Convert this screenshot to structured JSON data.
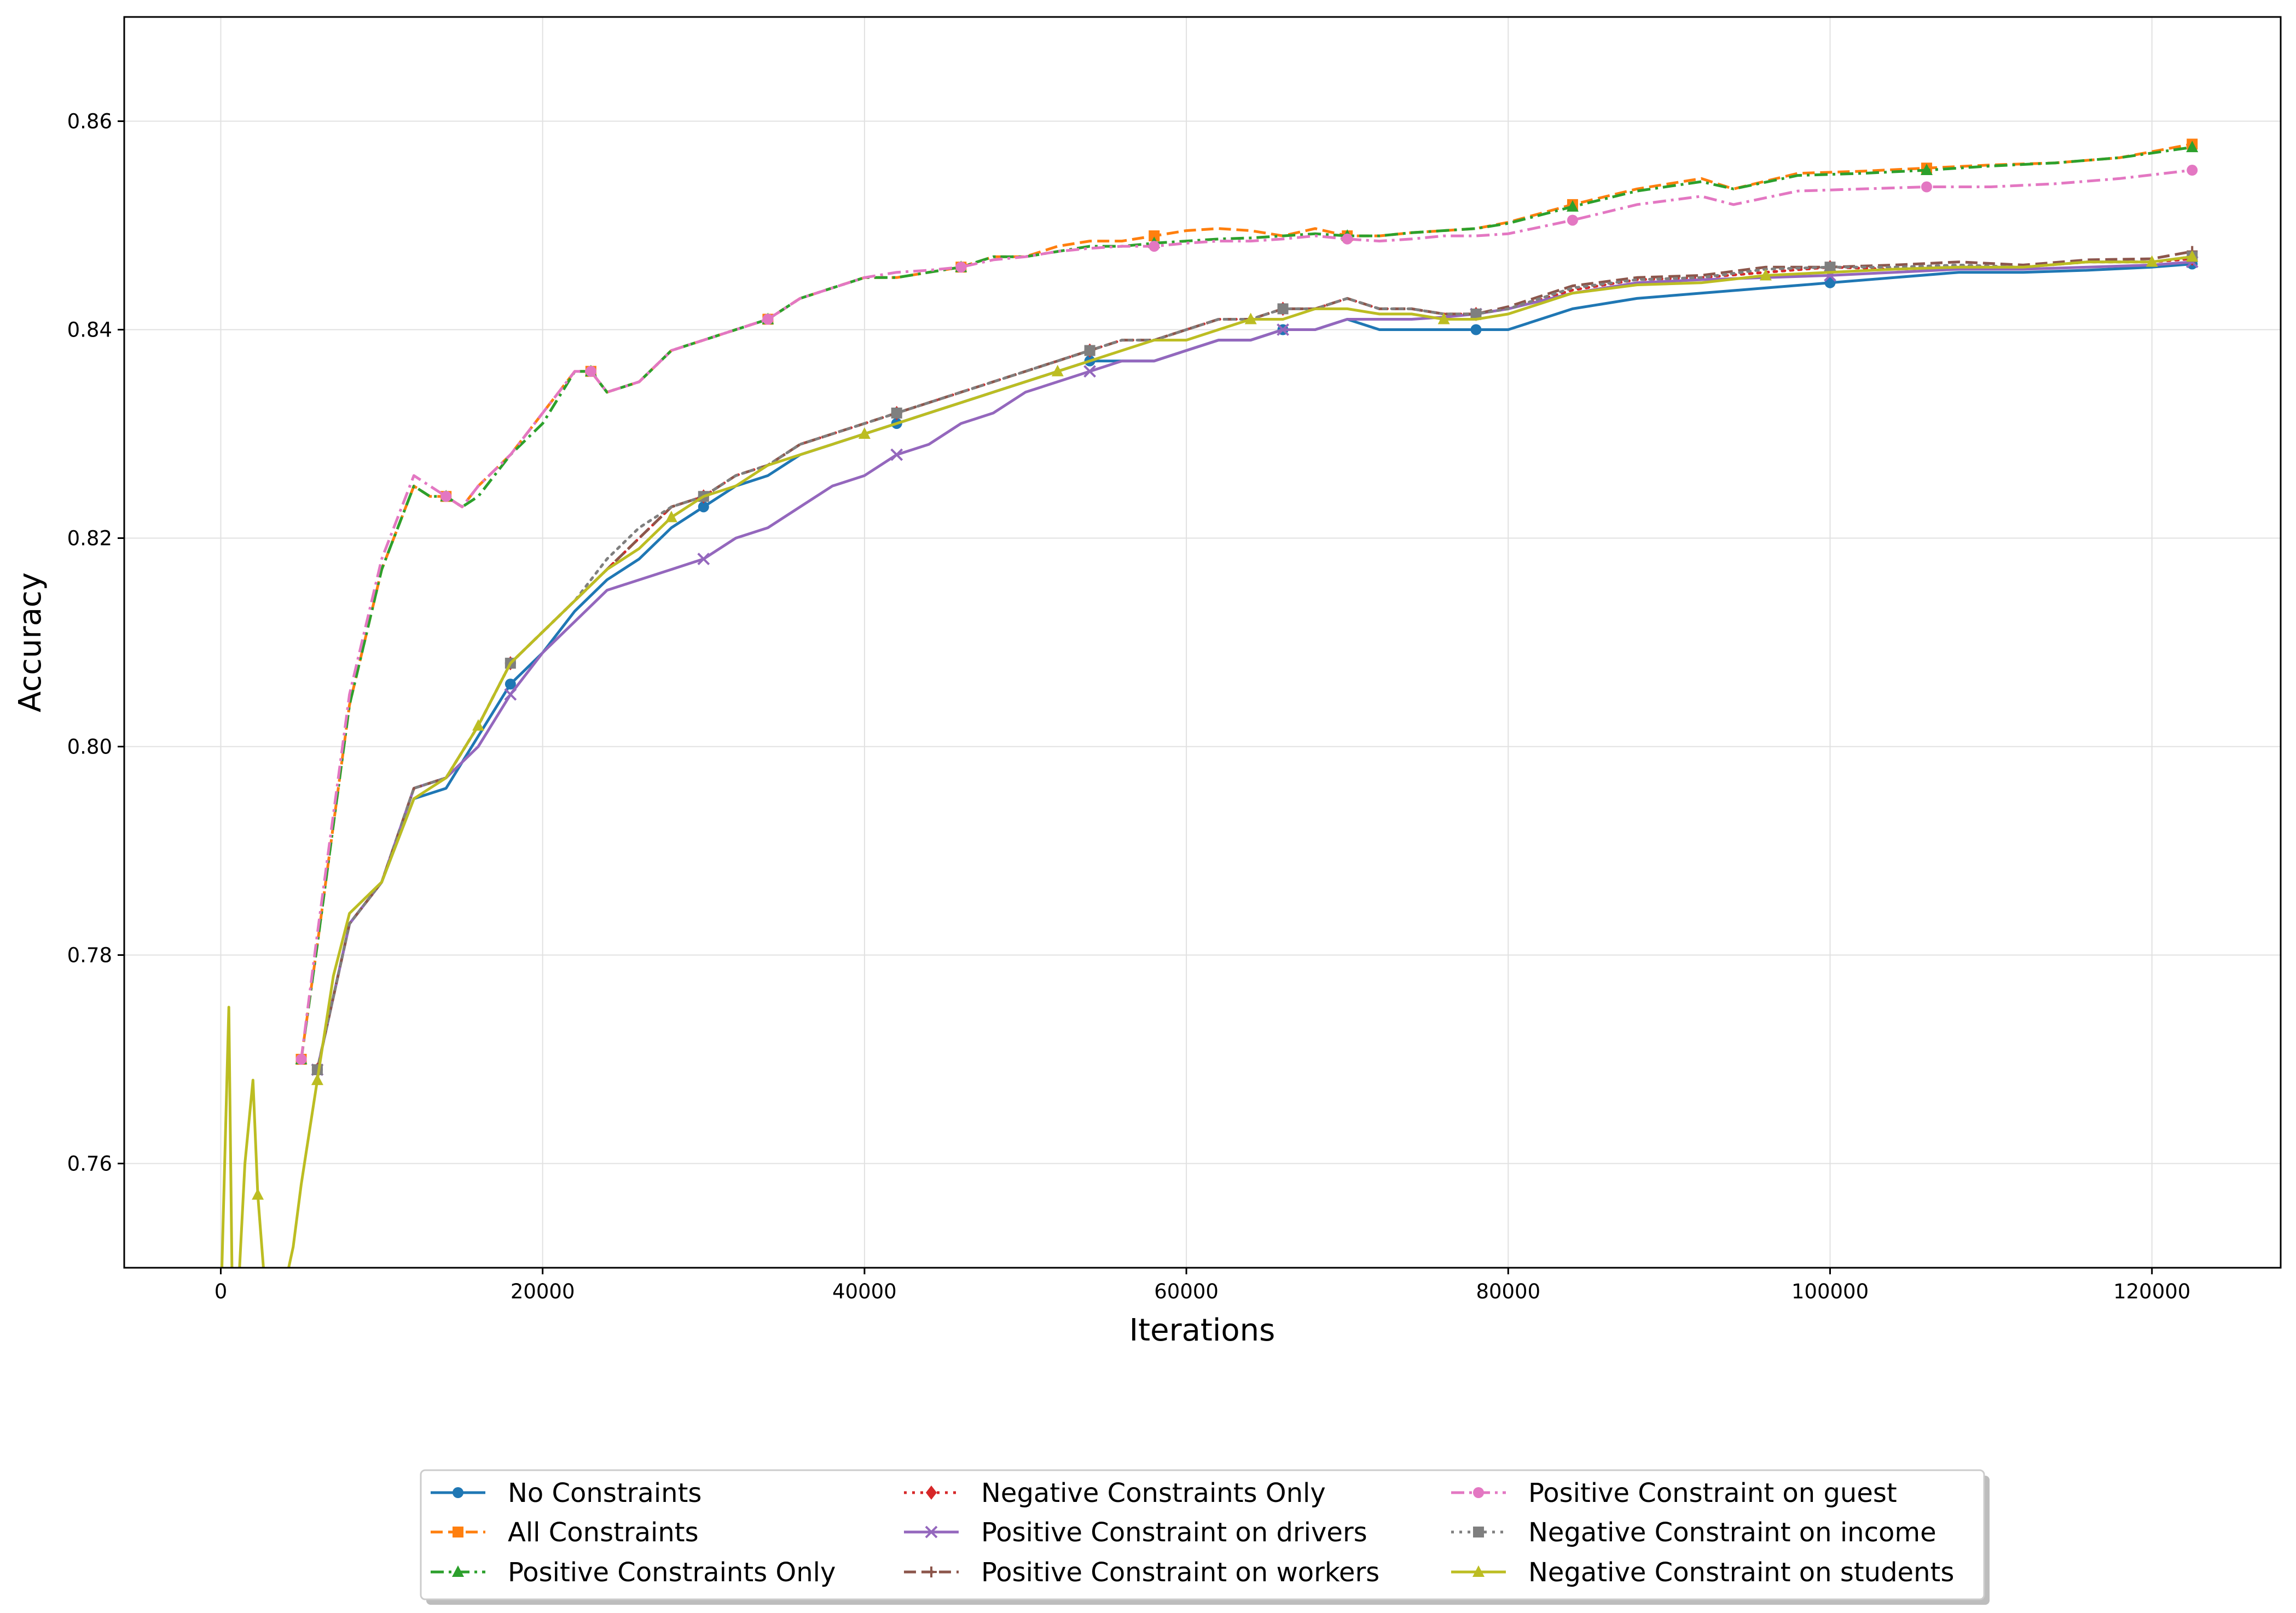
{
  "chart_data": {
    "type": "line",
    "title": "",
    "xlabel": "Iterations",
    "ylabel": "Accuracy",
    "xlim": [
      -6000,
      128000
    ],
    "ylim": [
      0.75,
      0.87
    ],
    "xticks": [
      0,
      20000,
      40000,
      60000,
      80000,
      100000,
      120000
    ],
    "xtick_labels": [
      "0",
      "20000",
      "40000",
      "60000",
      "80000",
      "100000",
      "120000"
    ],
    "yticks": [
      0.76,
      0.78,
      0.8,
      0.82,
      0.84,
      0.86
    ],
    "ytick_labels": [
      "0.76",
      "0.78",
      "0.80",
      "0.82",
      "0.84",
      "0.86"
    ],
    "grid": true,
    "legend_position": "bottom-center",
    "legend_columns": 3,
    "series": [
      {
        "name": "No Constraints",
        "color": "#1f77b4",
        "dash": "solid",
        "marker": "circle",
        "x": [
          6000,
          8000,
          10000,
          12000,
          14000,
          16000,
          18000,
          20000,
          22000,
          24000,
          26000,
          28000,
          30000,
          32000,
          34000,
          36000,
          38000,
          40000,
          42000,
          44000,
          46000,
          48000,
          50000,
          52000,
          54000,
          56000,
          58000,
          60000,
          62000,
          64000,
          66000,
          68000,
          70000,
          72000,
          74000,
          76000,
          78000,
          80000,
          84000,
          88000,
          92000,
          96000,
          100000,
          104000,
          108000,
          112000,
          116000,
          120000,
          122500
        ],
        "y": [
          0.769,
          0.783,
          0.787,
          0.795,
          0.796,
          0.801,
          0.806,
          0.809,
          0.813,
          0.816,
          0.818,
          0.821,
          0.823,
          0.825,
          0.826,
          0.828,
          0.829,
          0.83,
          0.831,
          0.832,
          0.833,
          0.834,
          0.835,
          0.836,
          0.837,
          0.837,
          0.837,
          0.838,
          0.839,
          0.839,
          0.84,
          0.84,
          0.841,
          0.84,
          0.84,
          0.84,
          0.84,
          0.84,
          0.842,
          0.843,
          0.8435,
          0.844,
          0.8445,
          0.845,
          0.8455,
          0.8455,
          0.8457,
          0.846,
          0.8463
        ]
      },
      {
        "name": "All Constraints",
        "color": "#ff7f0e",
        "dash": "dashed",
        "marker": "square",
        "x": [
          5000,
          6000,
          8000,
          10000,
          12000,
          13000,
          14000,
          15000,
          16000,
          18000,
          20000,
          22000,
          23000,
          24000,
          26000,
          28000,
          30000,
          32000,
          34000,
          36000,
          38000,
          40000,
          42000,
          44000,
          46000,
          48000,
          50000,
          52000,
          54000,
          56000,
          58000,
          60000,
          62000,
          64000,
          66000,
          68000,
          70000,
          72000,
          74000,
          76000,
          78000,
          80000,
          84000,
          88000,
          92000,
          94000,
          98000,
          102000,
          106000,
          110000,
          114000,
          118000,
          122500
        ],
        "y": [
          0.77,
          0.781,
          0.804,
          0.817,
          0.825,
          0.824,
          0.824,
          0.823,
          0.825,
          0.828,
          0.832,
          0.836,
          0.836,
          0.834,
          0.835,
          0.838,
          0.839,
          0.84,
          0.841,
          0.843,
          0.844,
          0.845,
          0.845,
          0.8455,
          0.846,
          0.847,
          0.847,
          0.848,
          0.8485,
          0.8485,
          0.849,
          0.8495,
          0.8497,
          0.8495,
          0.849,
          0.8497,
          0.849,
          0.849,
          0.8493,
          0.8495,
          0.8497,
          0.8503,
          0.852,
          0.8535,
          0.8545,
          0.8535,
          0.855,
          0.8552,
          0.8555,
          0.8558,
          0.856,
          0.8565,
          0.8578
        ]
      },
      {
        "name": "Positive Constraints Only",
        "color": "#2ca02c",
        "dash": "dashdot",
        "marker": "triangle",
        "x": [
          5000,
          6000,
          8000,
          10000,
          12000,
          13000,
          14000,
          15000,
          16000,
          18000,
          20000,
          22000,
          23000,
          24000,
          26000,
          28000,
          30000,
          32000,
          34000,
          36000,
          38000,
          40000,
          42000,
          44000,
          46000,
          48000,
          50000,
          52000,
          54000,
          56000,
          58000,
          60000,
          62000,
          64000,
          66000,
          68000,
          70000,
          72000,
          74000,
          76000,
          78000,
          80000,
          84000,
          88000,
          92000,
          94000,
          98000,
          102000,
          106000,
          110000,
          114000,
          118000,
          122500
        ],
        "y": [
          0.77,
          0.781,
          0.804,
          0.817,
          0.825,
          0.824,
          0.824,
          0.823,
          0.824,
          0.828,
          0.831,
          0.836,
          0.836,
          0.834,
          0.835,
          0.838,
          0.839,
          0.84,
          0.841,
          0.843,
          0.844,
          0.845,
          0.845,
          0.8455,
          0.846,
          0.847,
          0.847,
          0.8475,
          0.848,
          0.848,
          0.8483,
          0.8485,
          0.8487,
          0.8488,
          0.849,
          0.8492,
          0.849,
          0.849,
          0.8493,
          0.8495,
          0.8497,
          0.8502,
          0.8518,
          0.8533,
          0.8542,
          0.8535,
          0.8548,
          0.855,
          0.8553,
          0.8557,
          0.856,
          0.8565,
          0.8575
        ]
      },
      {
        "name": "Negative Constraints Only",
        "color": "#d62728",
        "dash": "dotted",
        "marker": "diamond",
        "x": [
          6000,
          8000,
          10000,
          12000,
          14000,
          16000,
          18000,
          20000,
          22000,
          24000,
          26000,
          28000,
          30000,
          32000,
          34000,
          36000,
          38000,
          40000,
          42000,
          44000,
          46000,
          48000,
          50000,
          52000,
          54000,
          56000,
          58000,
          60000,
          62000,
          64000,
          66000,
          68000,
          70000,
          72000,
          74000,
          76000,
          78000,
          80000,
          84000,
          88000,
          92000,
          96000,
          100000,
          104000,
          108000,
          112000,
          116000,
          120000,
          122500
        ],
        "y": [
          0.769,
          0.783,
          0.787,
          0.796,
          0.797,
          0.802,
          0.808,
          0.811,
          0.814,
          0.817,
          0.82,
          0.823,
          0.824,
          0.826,
          0.827,
          0.829,
          0.83,
          0.831,
          0.832,
          0.833,
          0.834,
          0.835,
          0.836,
          0.837,
          0.838,
          0.839,
          0.839,
          0.84,
          0.841,
          0.841,
          0.842,
          0.842,
          0.843,
          0.842,
          0.842,
          0.8415,
          0.8415,
          0.842,
          0.8438,
          0.8448,
          0.845,
          0.8455,
          0.846,
          0.8458,
          0.846,
          0.846,
          0.8465,
          0.8465,
          0.8468
        ]
      },
      {
        "name": "Positive Constraint on drivers",
        "color": "#9467bd",
        "dash": "solid",
        "marker": "x",
        "x": [
          6000,
          8000,
          10000,
          12000,
          14000,
          16000,
          18000,
          20000,
          22000,
          24000,
          26000,
          28000,
          30000,
          32000,
          34000,
          36000,
          38000,
          40000,
          42000,
          44000,
          46000,
          48000,
          50000,
          52000,
          54000,
          56000,
          58000,
          60000,
          62000,
          64000,
          66000,
          68000,
          70000,
          72000,
          74000,
          76000,
          78000,
          80000,
          84000,
          88000,
          92000,
          96000,
          100000,
          104000,
          108000,
          112000,
          116000,
          120000,
          122500
        ],
        "y": [
          0.769,
          0.783,
          0.787,
          0.796,
          0.797,
          0.8,
          0.805,
          0.809,
          0.812,
          0.815,
          0.816,
          0.817,
          0.818,
          0.82,
          0.821,
          0.823,
          0.825,
          0.826,
          0.828,
          0.829,
          0.831,
          0.832,
          0.834,
          0.835,
          0.836,
          0.837,
          0.837,
          0.838,
          0.839,
          0.839,
          0.84,
          0.84,
          0.841,
          0.841,
          0.841,
          0.8412,
          0.8415,
          0.842,
          0.8435,
          0.8445,
          0.8448,
          0.845,
          0.8452,
          0.8455,
          0.8458,
          0.8458,
          0.846,
          0.8462,
          0.8465
        ]
      },
      {
        "name": "Positive Constraint on workers",
        "color": "#8c564b",
        "dash": "dashed",
        "marker": "plus",
        "x": [
          6000,
          8000,
          10000,
          12000,
          14000,
          16000,
          18000,
          20000,
          22000,
          24000,
          26000,
          28000,
          30000,
          32000,
          34000,
          36000,
          38000,
          40000,
          42000,
          44000,
          46000,
          48000,
          50000,
          52000,
          54000,
          56000,
          58000,
          60000,
          62000,
          64000,
          66000,
          68000,
          70000,
          72000,
          74000,
          76000,
          78000,
          80000,
          84000,
          88000,
          92000,
          96000,
          100000,
          104000,
          108000,
          112000,
          116000,
          120000,
          122500
        ],
        "y": [
          0.769,
          0.783,
          0.787,
          0.796,
          0.797,
          0.802,
          0.808,
          0.811,
          0.814,
          0.817,
          0.82,
          0.823,
          0.824,
          0.826,
          0.827,
          0.829,
          0.83,
          0.831,
          0.832,
          0.833,
          0.834,
          0.835,
          0.836,
          0.837,
          0.838,
          0.839,
          0.839,
          0.84,
          0.841,
          0.841,
          0.842,
          0.842,
          0.843,
          0.842,
          0.842,
          0.8415,
          0.8415,
          0.8422,
          0.8442,
          0.845,
          0.8452,
          0.846,
          0.846,
          0.8462,
          0.8465,
          0.8462,
          0.8467,
          0.8468,
          0.8475
        ]
      },
      {
        "name": "Positive Constraint on guest",
        "color": "#e377c2",
        "dash": "dashdot",
        "marker": "circle",
        "x": [
          5000,
          6000,
          8000,
          10000,
          12000,
          13000,
          14000,
          15000,
          16000,
          18000,
          20000,
          22000,
          23000,
          24000,
          26000,
          28000,
          30000,
          32000,
          34000,
          36000,
          38000,
          40000,
          42000,
          44000,
          46000,
          48000,
          50000,
          52000,
          54000,
          56000,
          58000,
          60000,
          62000,
          64000,
          66000,
          68000,
          70000,
          72000,
          74000,
          76000,
          78000,
          80000,
          84000,
          88000,
          92000,
          94000,
          98000,
          102000,
          106000,
          110000,
          114000,
          118000,
          122500
        ],
        "y": [
          0.77,
          0.782,
          0.805,
          0.818,
          0.826,
          0.825,
          0.824,
          0.823,
          0.825,
          0.828,
          0.832,
          0.836,
          0.836,
          0.834,
          0.835,
          0.838,
          0.839,
          0.84,
          0.841,
          0.843,
          0.844,
          0.845,
          0.8455,
          0.8457,
          0.846,
          0.8467,
          0.847,
          0.8475,
          0.8478,
          0.848,
          0.848,
          0.8483,
          0.8485,
          0.8485,
          0.8487,
          0.849,
          0.8487,
          0.8485,
          0.8487,
          0.849,
          0.849,
          0.8492,
          0.8505,
          0.852,
          0.8528,
          0.852,
          0.8533,
          0.8535,
          0.8537,
          0.8537,
          0.854,
          0.8545,
          0.8553
        ]
      },
      {
        "name": "Negative Constraint on income",
        "color": "#7f7f7f",
        "dash": "dotted",
        "marker": "square",
        "x": [
          6000,
          8000,
          10000,
          12000,
          14000,
          16000,
          18000,
          20000,
          22000,
          24000,
          26000,
          28000,
          30000,
          32000,
          34000,
          36000,
          38000,
          40000,
          42000,
          44000,
          46000,
          48000,
          50000,
          52000,
          54000,
          56000,
          58000,
          60000,
          62000,
          64000,
          66000,
          68000,
          70000,
          72000,
          74000,
          76000,
          78000,
          80000,
          84000,
          88000,
          92000,
          96000,
          100000,
          104000,
          108000,
          112000,
          116000,
          120000,
          122500
        ],
        "y": [
          0.769,
          0.783,
          0.787,
          0.796,
          0.797,
          0.802,
          0.808,
          0.811,
          0.814,
          0.818,
          0.821,
          0.823,
          0.824,
          0.826,
          0.827,
          0.829,
          0.83,
          0.831,
          0.832,
          0.833,
          0.834,
          0.835,
          0.836,
          0.837,
          0.838,
          0.839,
          0.839,
          0.84,
          0.841,
          0.841,
          0.842,
          0.842,
          0.843,
          0.842,
          0.842,
          0.8415,
          0.8415,
          0.842,
          0.844,
          0.8448,
          0.845,
          0.8458,
          0.846,
          0.846,
          0.8462,
          0.846,
          0.8465,
          0.8465,
          0.847
        ]
      },
      {
        "name": "Negative Constraint on students",
        "color": "#bcbd22",
        "dash": "solid",
        "marker": "triangle",
        "x": [
          0,
          500,
          700,
          1000,
          1500,
          2000,
          2300,
          2700,
          3200,
          3800,
          4500,
          5000,
          6000,
          7000,
          8000,
          10000,
          12000,
          14000,
          16000,
          18000,
          20000,
          22000,
          24000,
          26000,
          28000,
          30000,
          32000,
          34000,
          36000,
          38000,
          40000,
          42000,
          44000,
          46000,
          48000,
          50000,
          52000,
          54000,
          56000,
          58000,
          60000,
          62000,
          64000,
          66000,
          68000,
          70000,
          72000,
          74000,
          76000,
          78000,
          80000,
          84000,
          88000,
          92000,
          96000,
          100000,
          104000,
          108000,
          112000,
          116000,
          120000,
          122500
        ],
        "y": [
          0.746,
          0.775,
          0.749,
          0.745,
          0.76,
          0.768,
          0.757,
          0.749,
          0.745,
          0.747,
          0.752,
          0.758,
          0.768,
          0.778,
          0.784,
          0.787,
          0.795,
          0.797,
          0.802,
          0.808,
          0.811,
          0.814,
          0.817,
          0.819,
          0.822,
          0.824,
          0.825,
          0.827,
          0.828,
          0.829,
          0.83,
          0.831,
          0.832,
          0.833,
          0.834,
          0.835,
          0.836,
          0.837,
          0.838,
          0.839,
          0.839,
          0.84,
          0.841,
          0.841,
          0.842,
          0.842,
          0.8415,
          0.8415,
          0.841,
          0.841,
          0.8415,
          0.8435,
          0.8443,
          0.8445,
          0.8452,
          0.8455,
          0.8458,
          0.846,
          0.846,
          0.8465,
          0.8465,
          0.847
        ]
      }
    ]
  }
}
